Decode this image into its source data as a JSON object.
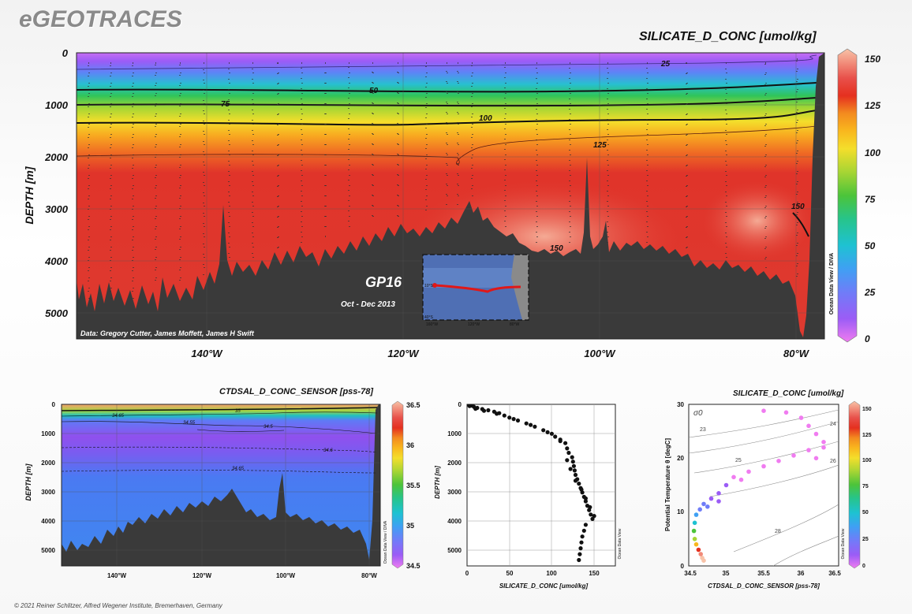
{
  "brand": "eGEOTRACES",
  "footer": "© 2021 Reiner Schlitzer, Alfred Wegener Institute, Bremerhaven, Germany",
  "colors": {
    "land": "#3a3a3a",
    "section_red": "#dc3b2f",
    "contour": "#111111"
  },
  "colorscale_main": [
    "#f07cf0",
    "#9b5cf6",
    "#6f7df8",
    "#3fa0f3",
    "#1ec2d2",
    "#27c48a",
    "#4cc43a",
    "#a7d534",
    "#f4de2b",
    "#f9b71e",
    "#f38b1f",
    "#e5301f",
    "#e8504a",
    "#f18a78",
    "#f8c3a8"
  ],
  "main_section": {
    "title": "SILICATE_D_CONC [umol/kg]",
    "ylabel": "DEPTH [m]",
    "y_ticks": [
      "0",
      "1000",
      "2000",
      "3000",
      "4000",
      "5000"
    ],
    "x_ticks": [
      "140°W",
      "120°W",
      "100°W",
      "80°W"
    ],
    "colorbar_ticks": [
      "150",
      "125",
      "100",
      "75",
      "50",
      "25",
      "0"
    ],
    "contour_labels": [
      "25",
      "50",
      "75",
      "100",
      "125",
      "150",
      "150"
    ],
    "credit": "Data: Gregory Cutter, James Moffett, James H Swift",
    "odv": "Ocean Data View / DIVA",
    "cruise_name": "GP16",
    "cruise_date": "Oct - Dec 2013",
    "inset_lat_labels": [
      "10°S",
      "40°S"
    ],
    "inset_lon_labels": [
      "160°W",
      "120°W",
      "80°W"
    ]
  },
  "salinity_section": {
    "title": "CTDSAL_D_CONC_SENSOR [pss-78]",
    "ylabel": "DEPTH [m]",
    "y_ticks": [
      "0",
      "1000",
      "2000",
      "3000",
      "4000",
      "5000"
    ],
    "x_ticks": [
      "140°W",
      "120°W",
      "100°W",
      "80°W"
    ],
    "colorbar_ticks": [
      "36.5",
      "36",
      "35.5",
      "35",
      "34.5"
    ],
    "contour_labels": [
      "35",
      "34.65",
      "34.55",
      "34.5",
      "34.6",
      "34.65"
    ],
    "odv": "Ocean Data View / DIVA"
  },
  "chart_data": [
    {
      "type": "scatter",
      "title": "",
      "xlabel": "SILICATE_D_CONC [umol/kg]",
      "ylabel": "DEPTH [m]",
      "xlim": [
        0,
        175
      ],
      "ylim": [
        5500,
        0
      ],
      "x_ticks": [
        "0",
        "50",
        "100",
        "150"
      ],
      "y_ticks": [
        "0",
        "1000",
        "2000",
        "3000",
        "4000",
        "5000"
      ],
      "odv": "Ocean Data View",
      "series": [
        {
          "values": [
            [
              2,
              10
            ],
            [
              5,
              40
            ],
            [
              8,
              80
            ],
            [
              12,
              120
            ],
            [
              18,
              160
            ],
            [
              25,
              200
            ],
            [
              32,
              250
            ],
            [
              38,
              300
            ],
            [
              44,
              380
            ],
            [
              50,
              450
            ],
            [
              60,
              550
            ],
            [
              70,
              650
            ],
            [
              80,
              760
            ],
            [
              90,
              880
            ],
            [
              100,
              1000
            ],
            [
              104,
              1100
            ],
            [
              110,
              1200
            ],
            [
              116,
              1320
            ],
            [
              118,
              1500
            ],
            [
              120,
              1650
            ],
            [
              124,
              1800
            ],
            [
              125,
              1950
            ],
            [
              126,
              2100
            ],
            [
              127,
              2250
            ],
            [
              128,
              2400
            ],
            [
              130,
              2550
            ],
            [
              132,
              2700
            ],
            [
              134,
              2850
            ],
            [
              136,
              3000
            ],
            [
              138,
              3150
            ],
            [
              140,
              3300
            ],
            [
              142,
              3450
            ],
            [
              144,
              3600
            ],
            [
              146,
              3750
            ],
            [
              148,
              3900
            ],
            [
              140,
              4100
            ],
            [
              138,
              4300
            ],
            [
              136,
              4500
            ],
            [
              135,
              4700
            ],
            [
              134,
              4900
            ],
            [
              133,
              5100
            ],
            [
              132,
              5300
            ],
            [
              140,
              3200
            ],
            [
              145,
              3500
            ],
            [
              150,
              3800
            ],
            [
              135,
              2900
            ],
            [
              128,
              2600
            ],
            [
              122,
              2200
            ],
            [
              118,
              1900
            ],
            [
              110,
              1250
            ],
            [
              95,
              950
            ],
            [
              75,
              700
            ],
            [
              55,
              500
            ],
            [
              35,
              320
            ],
            [
              20,
              220
            ],
            [
              10,
              150
            ],
            [
              3,
              60
            ]
          ]
        }
      ]
    },
    {
      "type": "scatter",
      "title": "SILICATE_D_CONC [umol/kg]",
      "xlabel": "CTDSAL_D_CONC_SENSOR [pss-78]",
      "ylabel": "Potential Temperature θ [degC]",
      "xlim": [
        34.5,
        36.5
      ],
      "ylim": [
        0,
        30
      ],
      "x_ticks": [
        "34.5",
        "35",
        "35.5",
        "36",
        "36.5"
      ],
      "y_ticks": [
        "0",
        "10",
        "20",
        "30"
      ],
      "colorbar_ticks": [
        "150",
        "125",
        "100",
        "75",
        "50",
        "25",
        "0"
      ],
      "isopycnal_labels": [
        "σ0",
        "23",
        "24",
        "25",
        "26",
        "28"
      ],
      "odv": "Ocean Data View",
      "series": [
        {
          "values": [
            [
              34.7,
              1.0,
              150
            ],
            [
              34.68,
              1.5,
              148
            ],
            [
              34.66,
              2.2,
              140
            ],
            [
              34.63,
              3.0,
              120
            ],
            [
              34.6,
              4.0,
              95
            ],
            [
              34.58,
              5.0,
              80
            ],
            [
              34.57,
              6.5,
              60
            ],
            [
              34.58,
              8.0,
              45
            ],
            [
              34.6,
              9.5,
              30
            ],
            [
              34.65,
              10.5,
              25
            ],
            [
              34.7,
              11.5,
              20
            ],
            [
              34.8,
              12.5,
              15
            ],
            [
              34.9,
              13.5,
              10
            ],
            [
              35.0,
              15.0,
              6
            ],
            [
              35.1,
              16.5,
              4
            ],
            [
              35.3,
              17.5,
              3
            ],
            [
              35.5,
              18.5,
              2
            ],
            [
              35.7,
              19.5,
              2
            ],
            [
              35.9,
              20.5,
              2
            ],
            [
              36.1,
              21.5,
              1
            ],
            [
              36.3,
              23.0,
              1
            ],
            [
              36.2,
              24.5,
              1
            ],
            [
              36.1,
              26.0,
              1
            ],
            [
              36.0,
              27.5,
              1
            ],
            [
              35.8,
              28.5,
              1
            ],
            [
              35.5,
              28.8,
              1
            ],
            [
              36.3,
              22.0,
              2
            ],
            [
              36.2,
              20.0,
              2
            ],
            [
              35.2,
              16.0,
              5
            ],
            [
              34.9,
              12.0,
              12
            ],
            [
              34.75,
              11.0,
              22
            ]
          ]
        }
      ]
    }
  ]
}
